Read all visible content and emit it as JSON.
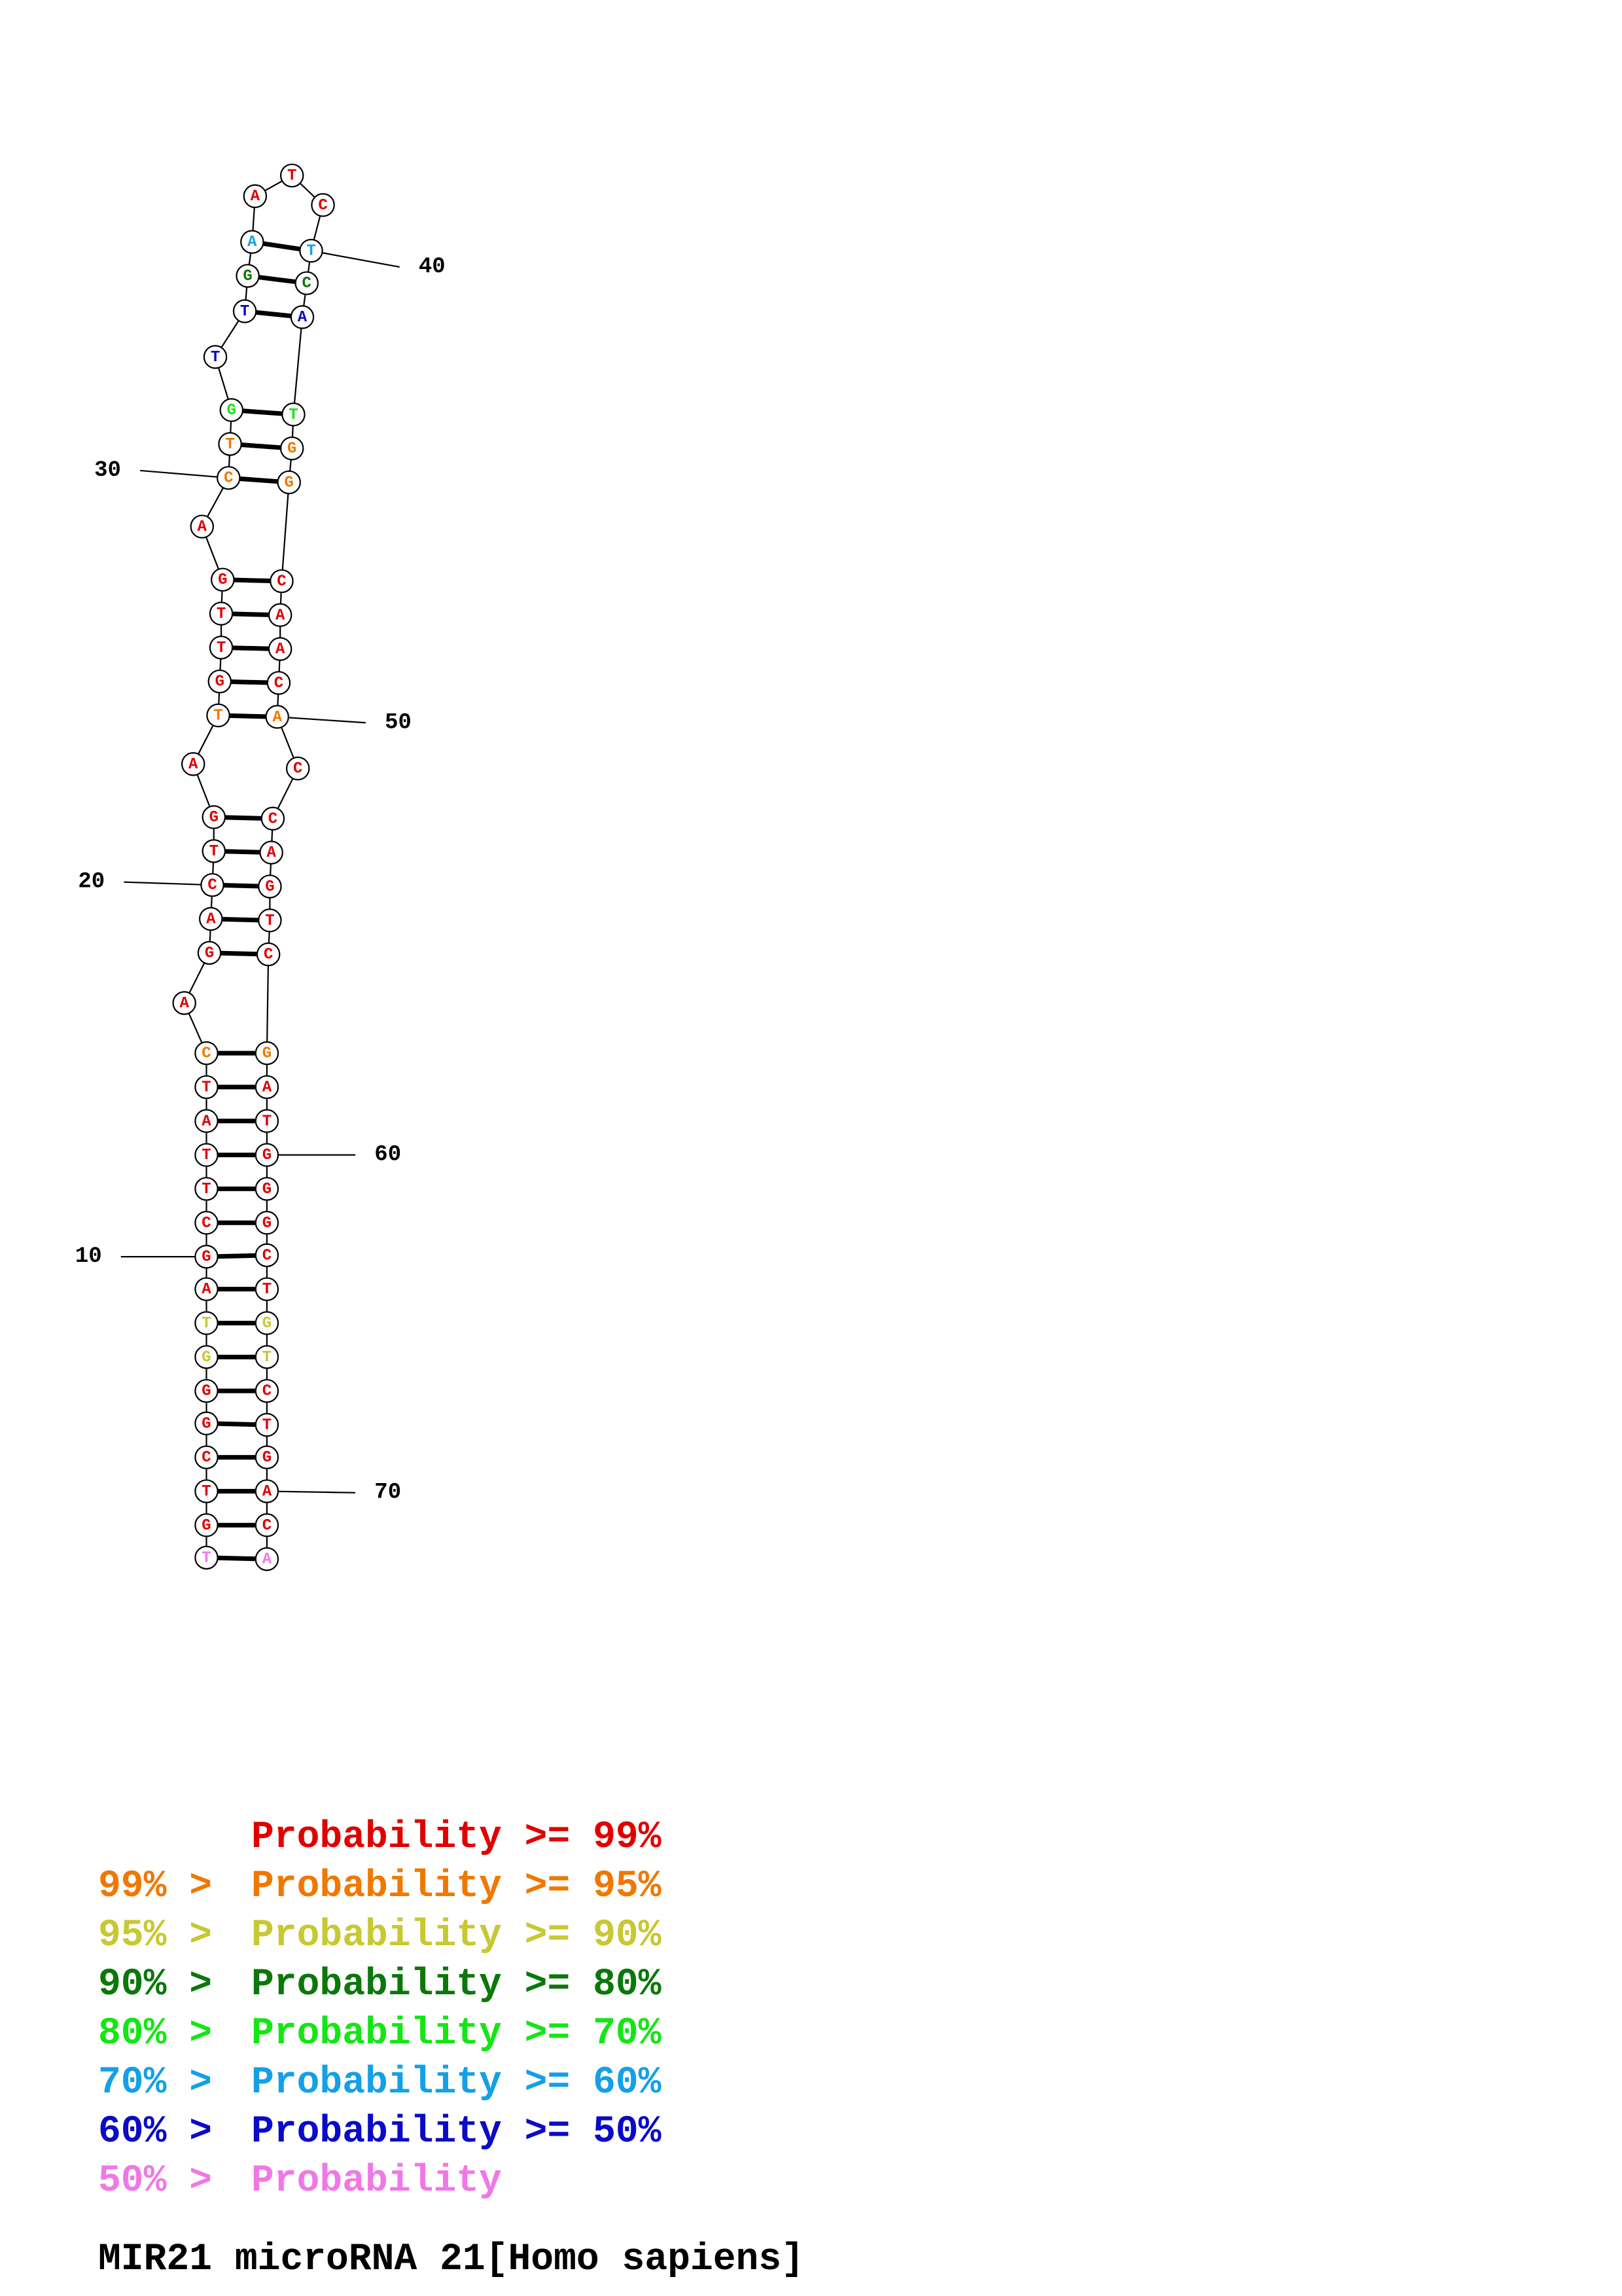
{
  "colors": {
    "p99": "#e00000",
    "p95": "#f07800",
    "p90": "#c8c832",
    "p80": "#0a780a",
    "p70": "#14e614",
    "p60": "#14a0e6",
    "p50": "#0a0ac8",
    "plt50": "#f078e6"
  },
  "sequence": [
    {
      "n": 1,
      "base": "T",
      "c": "plt50"
    },
    {
      "n": 2,
      "base": "G",
      "c": "p99"
    },
    {
      "n": 3,
      "base": "T",
      "c": "p99"
    },
    {
      "n": 4,
      "base": "C",
      "c": "p99"
    },
    {
      "n": 5,
      "base": "G",
      "c": "p99"
    },
    {
      "n": 6,
      "base": "G",
      "c": "p99"
    },
    {
      "n": 7,
      "base": "G",
      "c": "p90"
    },
    {
      "n": 8,
      "base": "T",
      "c": "p90"
    },
    {
      "n": 9,
      "base": "A",
      "c": "p99"
    },
    {
      "n": 10,
      "base": "G",
      "c": "p99"
    },
    {
      "n": 11,
      "base": "C",
      "c": "p99"
    },
    {
      "n": 12,
      "base": "T",
      "c": "p99"
    },
    {
      "n": 13,
      "base": "T",
      "c": "p99"
    },
    {
      "n": 14,
      "base": "A",
      "c": "p99"
    },
    {
      "n": 15,
      "base": "T",
      "c": "p99"
    },
    {
      "n": 16,
      "base": "C",
      "c": "p95"
    },
    {
      "n": 17,
      "base": "A",
      "c": "p99"
    },
    {
      "n": 18,
      "base": "G",
      "c": "p99"
    },
    {
      "n": 19,
      "base": "A",
      "c": "p99"
    },
    {
      "n": 20,
      "base": "C",
      "c": "p99"
    },
    {
      "n": 21,
      "base": "T",
      "c": "p99"
    },
    {
      "n": 22,
      "base": "G",
      "c": "p99"
    },
    {
      "n": 23,
      "base": "A",
      "c": "p99"
    },
    {
      "n": 24,
      "base": "T",
      "c": "p95"
    },
    {
      "n": 25,
      "base": "G",
      "c": "p99"
    },
    {
      "n": 26,
      "base": "T",
      "c": "p99"
    },
    {
      "n": 27,
      "base": "T",
      "c": "p99"
    },
    {
      "n": 28,
      "base": "G",
      "c": "p99"
    },
    {
      "n": 29,
      "base": "A",
      "c": "p99"
    },
    {
      "n": 30,
      "base": "C",
      "c": "p95"
    },
    {
      "n": 31,
      "base": "T",
      "c": "p95"
    },
    {
      "n": 32,
      "base": "G",
      "c": "p70"
    },
    {
      "n": 33,
      "base": "T",
      "c": "p50"
    },
    {
      "n": 34,
      "base": "T",
      "c": "p50"
    },
    {
      "n": 35,
      "base": "G",
      "c": "p80"
    },
    {
      "n": 36,
      "base": "A",
      "c": "p60"
    },
    {
      "n": 37,
      "base": "A",
      "c": "p99"
    },
    {
      "n": 38,
      "base": "T",
      "c": "p99"
    },
    {
      "n": 39,
      "base": "C",
      "c": "p99"
    },
    {
      "n": 40,
      "base": "T",
      "c": "p60"
    },
    {
      "n": 41,
      "base": "C",
      "c": "p80"
    },
    {
      "n": 42,
      "base": "A",
      "c": "p50"
    },
    {
      "n": 43,
      "base": "T",
      "c": "p70"
    },
    {
      "n": 44,
      "base": "G",
      "c": "p95"
    },
    {
      "n": 45,
      "base": "G",
      "c": "p95"
    },
    {
      "n": 46,
      "base": "C",
      "c": "p99"
    },
    {
      "n": 47,
      "base": "A",
      "c": "p99"
    },
    {
      "n": 48,
      "base": "A",
      "c": "p99"
    },
    {
      "n": 49,
      "base": "C",
      "c": "p99"
    },
    {
      "n": 50,
      "base": "A",
      "c": "p95"
    },
    {
      "n": 51,
      "base": "C",
      "c": "p99"
    },
    {
      "n": 52,
      "base": "C",
      "c": "p99"
    },
    {
      "n": 53,
      "base": "A",
      "c": "p99"
    },
    {
      "n": 54,
      "base": "G",
      "c": "p99"
    },
    {
      "n": 55,
      "base": "T",
      "c": "p99"
    },
    {
      "n": 56,
      "base": "C",
      "c": "p99"
    },
    {
      "n": 57,
      "base": "G",
      "c": "p95"
    },
    {
      "n": 58,
      "base": "A",
      "c": "p99"
    },
    {
      "n": 59,
      "base": "T",
      "c": "p99"
    },
    {
      "n": 60,
      "base": "G",
      "c": "p99"
    },
    {
      "n": 61,
      "base": "G",
      "c": "p99"
    },
    {
      "n": 62,
      "base": "G",
      "c": "p99"
    },
    {
      "n": 63,
      "base": "C",
      "c": "p99"
    },
    {
      "n": 64,
      "base": "T",
      "c": "p99"
    },
    {
      "n": 65,
      "base": "G",
      "c": "p90"
    },
    {
      "n": 66,
      "base": "T",
      "c": "p90"
    },
    {
      "n": 67,
      "base": "C",
      "c": "p99"
    },
    {
      "n": 68,
      "base": "T",
      "c": "p99"
    },
    {
      "n": 69,
      "base": "G",
      "c": "p99"
    },
    {
      "n": 70,
      "base": "A",
      "c": "p99"
    },
    {
      "n": 71,
      "base": "C",
      "c": "p99"
    },
    {
      "n": 72,
      "base": "A",
      "c": "plt50"
    }
  ],
  "pairs": [
    [
      1,
      72
    ],
    [
      2,
      71
    ],
    [
      3,
      70
    ],
    [
      4,
      69
    ],
    [
      5,
      68
    ],
    [
      6,
      67
    ],
    [
      7,
      66
    ],
    [
      8,
      65
    ],
    [
      9,
      64
    ],
    [
      10,
      63
    ],
    [
      11,
      62
    ],
    [
      12,
      61
    ],
    [
      13,
      60
    ],
    [
      14,
      59
    ],
    [
      15,
      58
    ],
    [
      16,
      57
    ],
    [
      18,
      56
    ],
    [
      19,
      55
    ],
    [
      20,
      54
    ],
    [
      21,
      53
    ],
    [
      22,
      52
    ],
    [
      24,
      50
    ],
    [
      25,
      49
    ],
    [
      26,
      48
    ],
    [
      27,
      47
    ],
    [
      28,
      46
    ],
    [
      30,
      45
    ],
    [
      31,
      44
    ],
    [
      32,
      43
    ],
    [
      34,
      42
    ],
    [
      35,
      41
    ],
    [
      36,
      40
    ]
  ],
  "position_labels": [
    {
      "n": 10,
      "label": "10"
    },
    {
      "n": 20,
      "label": "20"
    },
    {
      "n": 30,
      "label": "30"
    },
    {
      "n": 40,
      "label": "40"
    },
    {
      "n": 50,
      "label": "50"
    },
    {
      "n": 60,
      "label": "60"
    },
    {
      "n": 70,
      "label": "70"
    }
  ],
  "legend": [
    {
      "prefix": "",
      "label": "Probability",
      "suffix": " >= 99%",
      "color": "p99"
    },
    {
      "prefix": "99% > ",
      "label": "Probability",
      "suffix": " >= 95%",
      "color": "p95"
    },
    {
      "prefix": "95% > ",
      "label": "Probability",
      "suffix": " >= 90%",
      "color": "p90"
    },
    {
      "prefix": "90% > ",
      "label": "Probability",
      "suffix": " >= 80%",
      "color": "p80"
    },
    {
      "prefix": "80% > ",
      "label": "Probability",
      "suffix": " >= 70%",
      "color": "p70"
    },
    {
      "prefix": "70% > ",
      "label": "Probability",
      "suffix": " >= 60%",
      "color": "p60"
    },
    {
      "prefix": "60% > ",
      "label": "Probability",
      "suffix": " >= 50%",
      "color": "p50"
    },
    {
      "prefix": "50% > ",
      "label": "Probability",
      "suffix": "",
      "color": "plt50"
    }
  ],
  "title": "MIR21 microRNA 21[Homo sapiens]"
}
